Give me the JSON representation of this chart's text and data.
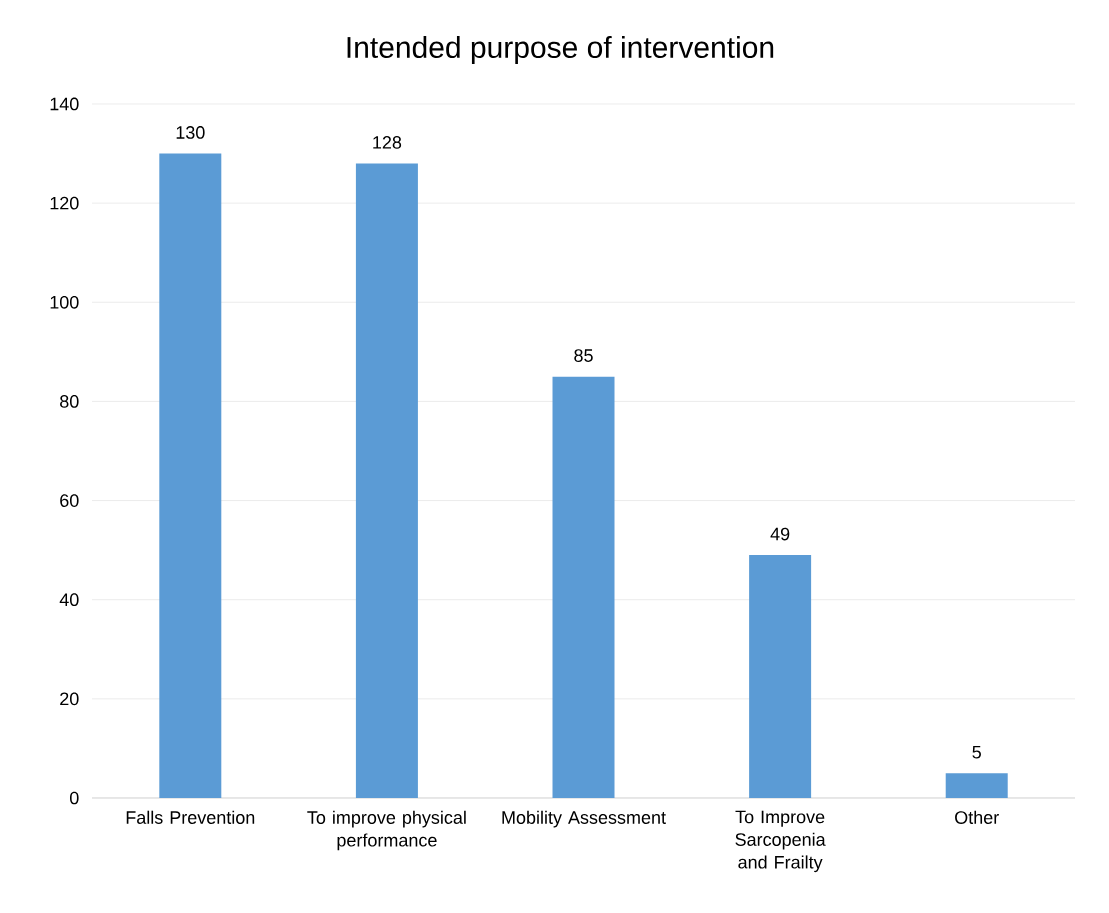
{
  "chart_data": {
    "type": "bar",
    "title": "Intended purpose of intervention",
    "categories": [
      "Falls Prevention",
      "To improve physical performance",
      "Mobility Assessment",
      "To Improve Sarcopenia and Frailty",
      "Other"
    ],
    "values": [
      130,
      128,
      85,
      49,
      5
    ],
    "color": "#5b9bd5",
    "ylim": [
      0,
      140
    ],
    "yticks": [
      0,
      20,
      40,
      60,
      80,
      100,
      120,
      140
    ],
    "grid": "y",
    "data_labels": true
  }
}
